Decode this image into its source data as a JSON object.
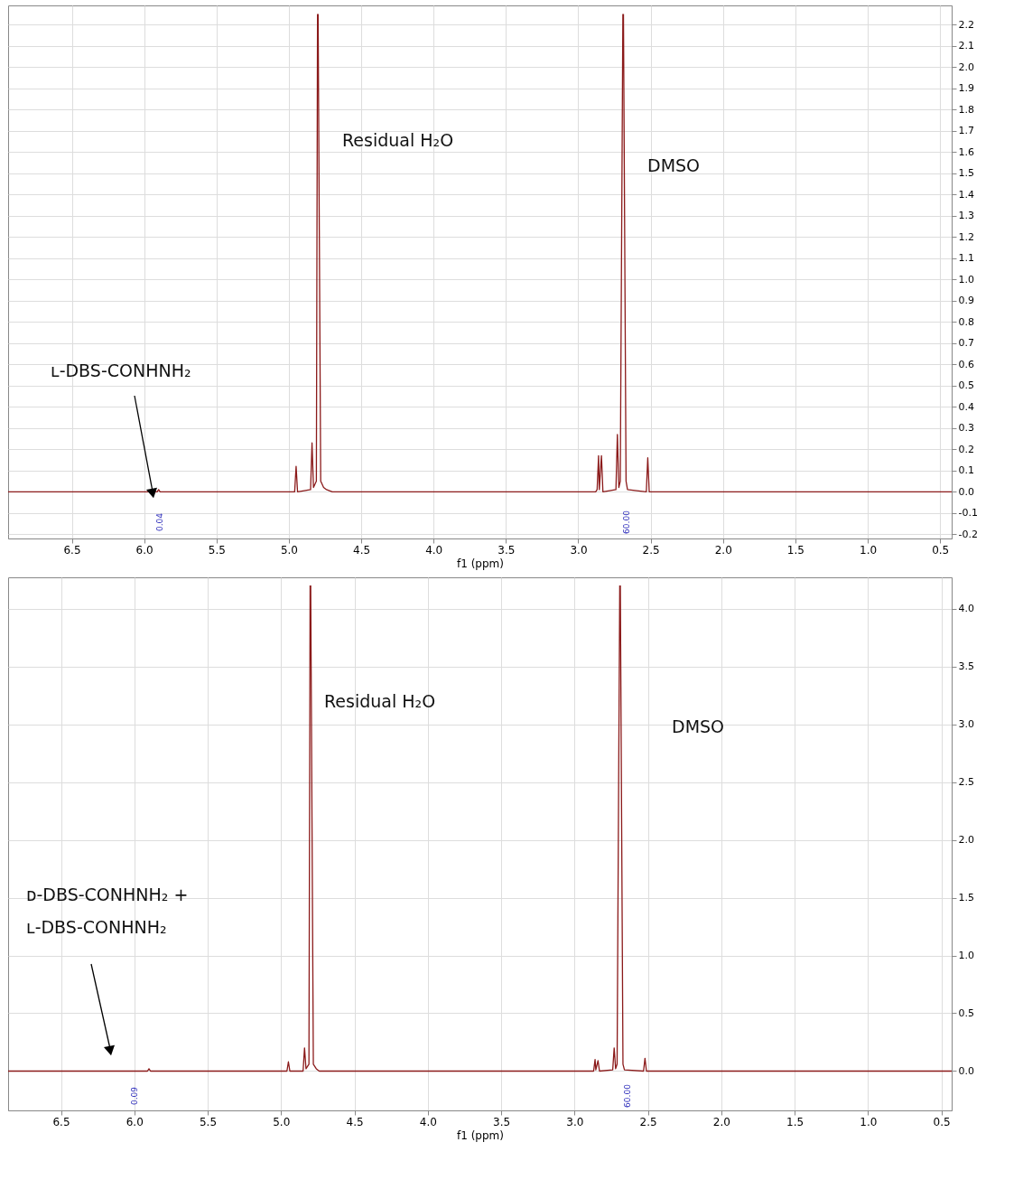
{
  "chart_data": [
    {
      "type": "line",
      "xlabel": "f1 (ppm)",
      "grid": true,
      "x": [
        6.94,
        5.91,
        5.9,
        5.89,
        4.96,
        4.95,
        4.94,
        4.85,
        4.84,
        4.83,
        4.81,
        4.802,
        4.8,
        4.798,
        4.78,
        4.76,
        4.74,
        4.7,
        2.88,
        2.87,
        2.86,
        2.855,
        2.84,
        2.83,
        2.74,
        2.73,
        2.72,
        2.71,
        2.692,
        2.69,
        2.688,
        2.67,
        2.66,
        2.53,
        2.52,
        2.51,
        0.42
      ],
      "series": [
        {
          "color": "#8b1a1a",
          "values": [
            0,
            0,
            0.01,
            0,
            0,
            0.12,
            0,
            0.01,
            0.23,
            0.02,
            0.05,
            2.25,
            null,
            2.25,
            0.05,
            0.02,
            0.01,
            0,
            0,
            0.01,
            0.17,
            0.01,
            0.17,
            0,
            0.01,
            0.27,
            0.02,
            0.05,
            2.25,
            null,
            2.25,
            0.05,
            0.01,
            0,
            0.16,
            0,
            0
          ]
        }
      ],
      "xlim": [
        6.94,
        0.42
      ],
      "ylim": [
        -0.22,
        2.29
      ],
      "xticks": [
        6.5,
        {
          "value": 6,
          "label": "6.0"
        },
        5.5,
        {
          "value": 5,
          "label": "5.0"
        },
        4.5,
        {
          "value": 4,
          "label": "4.0"
        },
        3.5,
        {
          "value": 3,
          "label": "3.0"
        },
        2.5,
        {
          "value": 2,
          "label": "2.0"
        },
        1.5,
        {
          "value": 1,
          "label": "1.0"
        },
        0.5
      ],
      "yticks": [
        -0.2,
        -0.1,
        {
          "value": 0,
          "label": "0.0"
        },
        0.1,
        0.2,
        0.3,
        0.4,
        0.5,
        0.6,
        0.7,
        0.8,
        0.9,
        {
          "value": 1,
          "label": "1.0"
        },
        1.1,
        1.2,
        1.3,
        1.4,
        1.5,
        1.6,
        1.7,
        1.8,
        1.9,
        {
          "value": 2,
          "label": "2.0"
        },
        2.1,
        2.2
      ],
      "annotations": [
        "Residual H₂O",
        "DMSO",
        "ʟ-DBS-CONHNH₂",
        "0.04",
        "60.00"
      ]
    },
    {
      "type": "line",
      "xlabel": "f1 (ppm)",
      "grid": true,
      "x": [
        6.86,
        5.91,
        5.9,
        5.89,
        4.96,
        4.95,
        4.94,
        4.85,
        4.84,
        4.83,
        4.81,
        4.802,
        4.8,
        4.798,
        4.78,
        4.76,
        4.74,
        4.7,
        2.88,
        2.87,
        2.86,
        2.855,
        2.84,
        2.83,
        2.74,
        2.73,
        2.72,
        2.71,
        2.692,
        2.69,
        2.688,
        2.67,
        2.66,
        2.53,
        2.52,
        2.51,
        0.43
      ],
      "series": [
        {
          "color": "#8b1a1a",
          "values": [
            0,
            0,
            0.02,
            0,
            0,
            0.08,
            0,
            0,
            0.2,
            0.02,
            0.06,
            4.2,
            null,
            4.2,
            0.06,
            0.02,
            0,
            0,
            0,
            0,
            0.1,
            0.01,
            0.09,
            0,
            0.01,
            0.2,
            0.02,
            0.06,
            4.2,
            null,
            4.2,
            0.06,
            0.01,
            0,
            0.11,
            0,
            0
          ]
        }
      ],
      "xlim": [
        6.86,
        0.43
      ],
      "ylim": [
        -0.34,
        4.27
      ],
      "xticks": [
        6.5,
        {
          "value": 6,
          "label": "6.0"
        },
        5.5,
        {
          "value": 5,
          "label": "5.0"
        },
        4.5,
        {
          "value": 4,
          "label": "4.0"
        },
        3.5,
        {
          "value": 3,
          "label": "3.0"
        },
        2.5,
        {
          "value": 2,
          "label": "2.0"
        },
        1.5,
        {
          "value": 1,
          "label": "1.0"
        },
        0.5
      ],
      "yticks": [
        {
          "value": 0,
          "label": "0.0"
        },
        0.5,
        {
          "value": 1,
          "label": "1.0"
        },
        1.5,
        {
          "value": 2,
          "label": "2.0"
        },
        2.5,
        {
          "value": 3,
          "label": "3.0"
        },
        3.5,
        {
          "value": 4,
          "label": "4.0"
        }
      ],
      "annotations": [
        "Residual H₂O",
        "DMSO",
        "ᴅ-DBS-CONHNH₂ +",
        "ʟ-DBS-CONHNH₂",
        "0.09",
        "60.00"
      ]
    }
  ]
}
